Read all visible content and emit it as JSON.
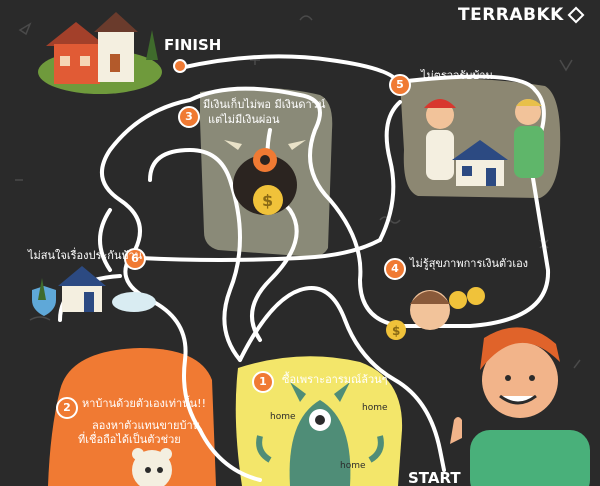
{
  "brand": {
    "logo_text": "TERRABKK",
    "logo_mark": "diamond-mark-icon"
  },
  "labels": {
    "finish": "FINISH",
    "start": "START"
  },
  "steps": [
    {
      "number": "1",
      "text": "ซื้อเพราะอารมณ์ล้วนๆ"
    },
    {
      "number": "2",
      "line1": "หาบ้านด้วยตัวเองเท่านั้น!!",
      "line2": "ลองหาตัวแทนขายบ้าน",
      "line3": "ที่เชื่อถือได้เป็นตัวช่วย"
    },
    {
      "number": "3",
      "line1": "มีเงินเก็บไม่พอ มีเงินดาวน์",
      "line2": "แต่ไม่มีเงินผ่อน"
    },
    {
      "number": "4",
      "text": "ไม่รู้สุขภาพการเงินตัวเอง"
    },
    {
      "number": "5",
      "text": "ไม่ตรวจรับบ้าน"
    },
    {
      "number": "6",
      "text": "ไม่สนใจเรื่องประกันบ้าน"
    }
  ],
  "home_words": [
    "home",
    "home",
    "home"
  ],
  "colors": {
    "background": "#2a2a2a",
    "path": "#ffffff",
    "accent": "#f07a33",
    "panel_gray": "#8a8a78",
    "panel_orange": "#f07a33",
    "panel_yellow": "#f3e66a"
  }
}
